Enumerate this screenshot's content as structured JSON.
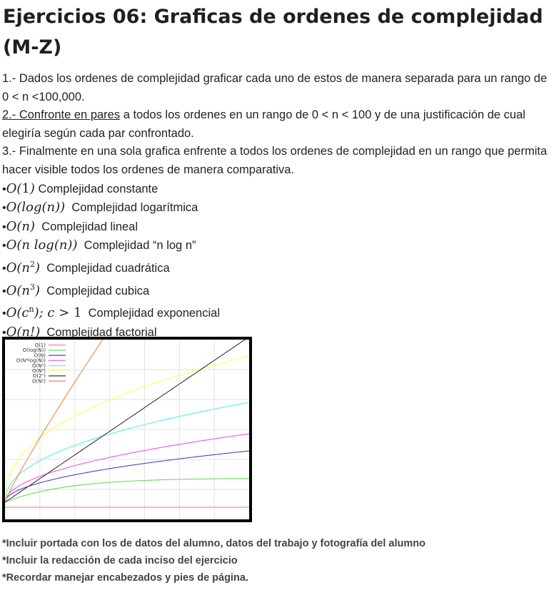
{
  "title": "Ejercicios 06: Graficas de ordenes de complejidad (M-Z)",
  "instructions": {
    "item1": "1.- Dados los ordenes de complejidad graficar cada uno de estos de manera separada para un rango de 0 < n <100,000.",
    "item2_underlined": "2.- Confronte en pares",
    "item2_rest": " a todos los ordenes en un rango de 0 < n < 100 y de una justificación de cual elegiría según cada par confrontado.",
    "item3": "3.- Finalmente en una sola grafica enfrente a todos los ordenes de complejidad en un rango que permita hacer visible todos los ordenes de manera comparativa."
  },
  "complexities": [
    {
      "notation": "O(1)",
      "label": "Complejidad constante"
    },
    {
      "notation": "O(log(n))",
      "label": "Complejidad logarítmica"
    },
    {
      "notation": "O(n)",
      "label": "Complejidad lineal"
    },
    {
      "notation": "O(n log(n))",
      "label": "Complejidad “n log n”"
    },
    {
      "notation": "O(n²)",
      "label": "Complejidad cuadrática"
    },
    {
      "notation": "O(n³)",
      "label": "Complejidad cubica"
    },
    {
      "notation": "O(cⁿ); c > 1",
      "label": "Complejidad exponencial"
    },
    {
      "notation": "O(n!)",
      "label": "Complejidad factorial"
    }
  ],
  "chart_data": {
    "type": "line",
    "title": "",
    "xlabel": "",
    "ylabel": "",
    "grid": true,
    "legend_position": "top-left",
    "series": [
      {
        "name": "O(1)",
        "color": "#ff6f8f"
      },
      {
        "name": "O(log(N))",
        "color": "#66dd55"
      },
      {
        "name": "O(N)",
        "color": "#4444cc"
      },
      {
        "name": "O(N*log(N))",
        "color": "#ee55ee"
      },
      {
        "name": "O(N²)",
        "color": "#55eeee"
      },
      {
        "name": "O(N³)",
        "color": "#ffff55"
      },
      {
        "name": "O(2ⁿ)",
        "color": "#333333"
      },
      {
        "name": "O(N!)",
        "color": "#ee8844"
      }
    ]
  },
  "notes": [
    "*Incluir portada con los de datos del alumno, datos del trabajo y fotografía del alumno",
    "*Incluir la redacción de cada inciso del ejercicio",
    "*Recordar manejar encabezados y pies de página."
  ]
}
